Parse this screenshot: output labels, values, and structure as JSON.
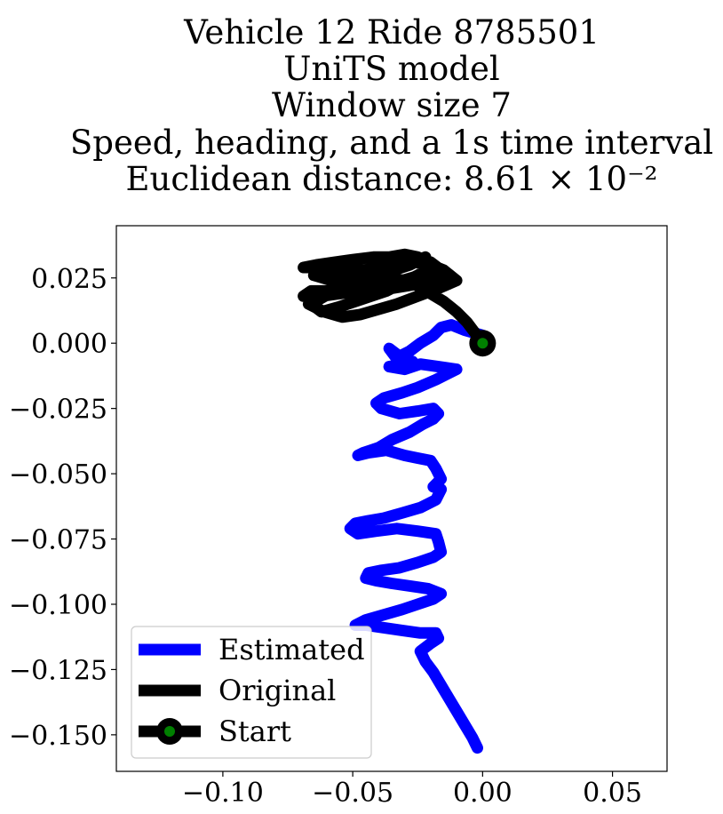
{
  "chart_data": {
    "type": "line",
    "title_lines": [
      "Vehicle 12 Ride 8785501",
      "UniTS model",
      "Window size 7",
      "Speed, heading, and a 1s time interval",
      "Euclidean distance: 8.61 × 10⁻²"
    ],
    "xlabel": "",
    "ylabel": "",
    "xlim": [
      -0.141,
      0.071
    ],
    "ylim": [
      -0.164,
      0.045
    ],
    "xticks": [
      -0.1,
      -0.05,
      0.0,
      0.05
    ],
    "xtick_labels": [
      "−0.10",
      "−0.05",
      "0.00",
      "0.05"
    ],
    "yticks": [
      0.025,
      0.0,
      -0.025,
      -0.05,
      -0.075,
      -0.1,
      -0.125,
      -0.15
    ],
    "ytick_labels": [
      "0.025",
      "0.000",
      "−0.025",
      "−0.050",
      "−0.075",
      "−0.100",
      "−0.125",
      "−0.150"
    ],
    "grid": false,
    "legend_position": "lower-left",
    "series": [
      {
        "name": "Estimated",
        "color": "#0000ff",
        "x": [
          0.0,
          -0.007,
          -0.012,
          -0.016,
          -0.019,
          -0.024,
          -0.028,
          -0.032,
          -0.036,
          -0.033,
          -0.027,
          -0.03,
          -0.036,
          -0.03,
          -0.024,
          -0.017,
          -0.01,
          -0.018,
          -0.025,
          -0.031,
          -0.038,
          -0.041,
          -0.039,
          -0.032,
          -0.025,
          -0.019,
          -0.017,
          -0.019,
          -0.023,
          -0.028,
          -0.035,
          -0.04,
          -0.043,
          -0.046,
          -0.048,
          -0.044,
          -0.037,
          -0.03,
          -0.025,
          -0.02,
          -0.018,
          -0.016,
          -0.019,
          -0.016,
          -0.018,
          -0.024,
          -0.031,
          -0.038,
          -0.044,
          -0.049,
          -0.051,
          -0.048,
          -0.041,
          -0.033,
          -0.025,
          -0.018,
          -0.017,
          -0.016,
          -0.019,
          -0.025,
          -0.032,
          -0.039,
          -0.044,
          -0.045,
          -0.041,
          -0.035,
          -0.028,
          -0.021,
          -0.016,
          -0.019,
          -0.025,
          -0.031,
          -0.038,
          -0.045,
          -0.049,
          -0.045,
          -0.038,
          -0.031,
          -0.024,
          -0.018,
          -0.017,
          -0.02,
          -0.024,
          -0.022,
          -0.019,
          -0.016,
          -0.013,
          -0.01,
          -0.007,
          -0.004,
          -0.002
        ],
        "y": [
          0.003,
          0.005,
          0.007,
          0.006,
          0.003,
          0.0,
          -0.003,
          -0.005,
          -0.002,
          -0.006,
          -0.007,
          -0.008,
          -0.009,
          -0.01,
          -0.008,
          -0.009,
          -0.01,
          -0.014,
          -0.017,
          -0.019,
          -0.021,
          -0.023,
          -0.025,
          -0.027,
          -0.026,
          -0.025,
          -0.027,
          -0.029,
          -0.031,
          -0.034,
          -0.037,
          -0.04,
          -0.041,
          -0.042,
          -0.043,
          -0.042,
          -0.041,
          -0.043,
          -0.044,
          -0.045,
          -0.048,
          -0.052,
          -0.055,
          -0.056,
          -0.06,
          -0.063,
          -0.065,
          -0.067,
          -0.068,
          -0.069,
          -0.071,
          -0.073,
          -0.072,
          -0.071,
          -0.072,
          -0.073,
          -0.076,
          -0.08,
          -0.082,
          -0.084,
          -0.086,
          -0.087,
          -0.088,
          -0.09,
          -0.091,
          -0.092,
          -0.093,
          -0.094,
          -0.096,
          -0.098,
          -0.1,
          -0.102,
          -0.104,
          -0.106,
          -0.108,
          -0.108,
          -0.109,
          -0.11,
          -0.111,
          -0.111,
          -0.113,
          -0.115,
          -0.118,
          -0.122,
          -0.126,
          -0.131,
          -0.136,
          -0.141,
          -0.146,
          -0.151,
          -0.155
        ]
      },
      {
        "name": "Original",
        "color": "#000000",
        "x": [
          0.0,
          -0.003,
          -0.006,
          -0.01,
          -0.015,
          -0.02,
          -0.025,
          -0.03,
          -0.036,
          -0.041,
          -0.046,
          -0.052,
          -0.057,
          -0.063,
          -0.069,
          -0.064,
          -0.057,
          -0.05,
          -0.042,
          -0.036,
          -0.03,
          -0.025,
          -0.02,
          -0.016,
          -0.024,
          -0.031,
          -0.038,
          -0.045,
          -0.052,
          -0.059,
          -0.066,
          -0.069,
          -0.062,
          -0.055,
          -0.048,
          -0.041,
          -0.035,
          -0.029,
          -0.023,
          -0.018,
          -0.013,
          -0.02,
          -0.028,
          -0.036,
          -0.044,
          -0.051,
          -0.058,
          -0.065,
          -0.06,
          -0.053,
          -0.046,
          -0.039,
          -0.032,
          -0.026,
          -0.02,
          -0.015,
          -0.01,
          -0.017,
          -0.025,
          -0.033,
          -0.04,
          -0.047,
          -0.054,
          -0.061,
          -0.067,
          -0.061,
          -0.054,
          -0.047,
          -0.04,
          -0.034,
          -0.028,
          -0.024,
          -0.02,
          -0.025,
          -0.031,
          -0.037,
          -0.043,
          -0.049,
          -0.055,
          -0.062,
          -0.066,
          -0.059,
          -0.052,
          -0.045,
          -0.038,
          -0.032,
          -0.027,
          -0.022
        ],
        "y": [
          0.0,
          0.004,
          0.008,
          0.012,
          0.016,
          0.019,
          0.022,
          0.024,
          0.025,
          0.026,
          0.027,
          0.027,
          0.028,
          0.029,
          0.029,
          0.03,
          0.031,
          0.032,
          0.033,
          0.033,
          0.034,
          0.033,
          0.031,
          0.028,
          0.026,
          0.024,
          0.023,
          0.022,
          0.021,
          0.02,
          0.02,
          0.018,
          0.018,
          0.019,
          0.02,
          0.021,
          0.021,
          0.022,
          0.023,
          0.024,
          0.025,
          0.024,
          0.023,
          0.022,
          0.022,
          0.023,
          0.024,
          0.026,
          0.027,
          0.028,
          0.028,
          0.029,
          0.03,
          0.031,
          0.03,
          0.028,
          0.024,
          0.021,
          0.018,
          0.015,
          0.013,
          0.011,
          0.01,
          0.012,
          0.015,
          0.018,
          0.021,
          0.024,
          0.026,
          0.028,
          0.03,
          0.032,
          0.029,
          0.026,
          0.023,
          0.02,
          0.018,
          0.016,
          0.014,
          0.012,
          0.015,
          0.019,
          0.022,
          0.025,
          0.027,
          0.029,
          0.031,
          0.033
        ]
      }
    ],
    "start_point": {
      "name": "Start",
      "x": 0.0,
      "y": 0.0,
      "marker_color": "#008000",
      "edge_color": "#000000"
    },
    "legend": [
      "Estimated",
      "Original",
      "Start"
    ]
  }
}
